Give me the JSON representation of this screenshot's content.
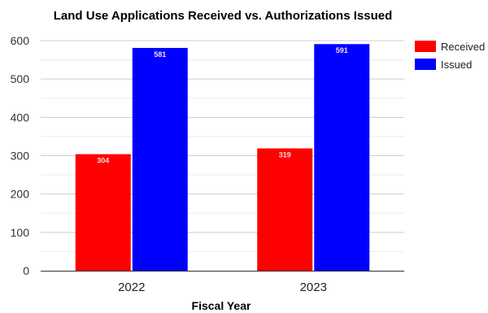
{
  "chart_data": {
    "type": "bar",
    "title": "Land Use Applications Received vs. Authorizations Issued",
    "xlabel": "Fiscal Year",
    "ylabel": "",
    "categories": [
      "2022",
      "2023"
    ],
    "series": [
      {
        "name": "Received",
        "color": "#ff0000",
        "values": [
          304,
          319
        ]
      },
      {
        "name": "Issued",
        "color": "#0000ff",
        "values": [
          581,
          591
        ]
      }
    ],
    "ylim": [
      0,
      600
    ],
    "yticks": [
      0,
      100,
      200,
      300,
      400,
      500,
      600
    ],
    "grid": true,
    "legend_position": "right"
  }
}
